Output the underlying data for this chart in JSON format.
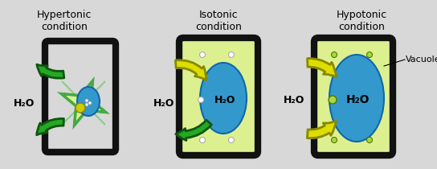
{
  "bg_color": "#d8d8d8",
  "titles": [
    "Hypertonic\ncondition",
    "Isotonic\ncondition",
    "Hypotonic\ncondition"
  ],
  "h2o_label": "H₂O",
  "vacuole_label": "Vacuole",
  "cell_wall_color": "#111111",
  "cytoplasm_color": "#ddf090",
  "membrane_color_dark": "#44aa44",
  "membrane_color_light": "#88cc88",
  "vacuole_color": "#3399cc",
  "vacuole_outline": "#1166aa",
  "arrow_green": "#22aa22",
  "arrow_green_light": "#66cc44",
  "arrow_yellow": "#dddd00",
  "arrow_yellow_edge": "#888800",
  "text_color": "#000000",
  "dot_color": "#ffffff",
  "dot_color3": "#aad840",
  "nucleus_color": "#cccc00"
}
